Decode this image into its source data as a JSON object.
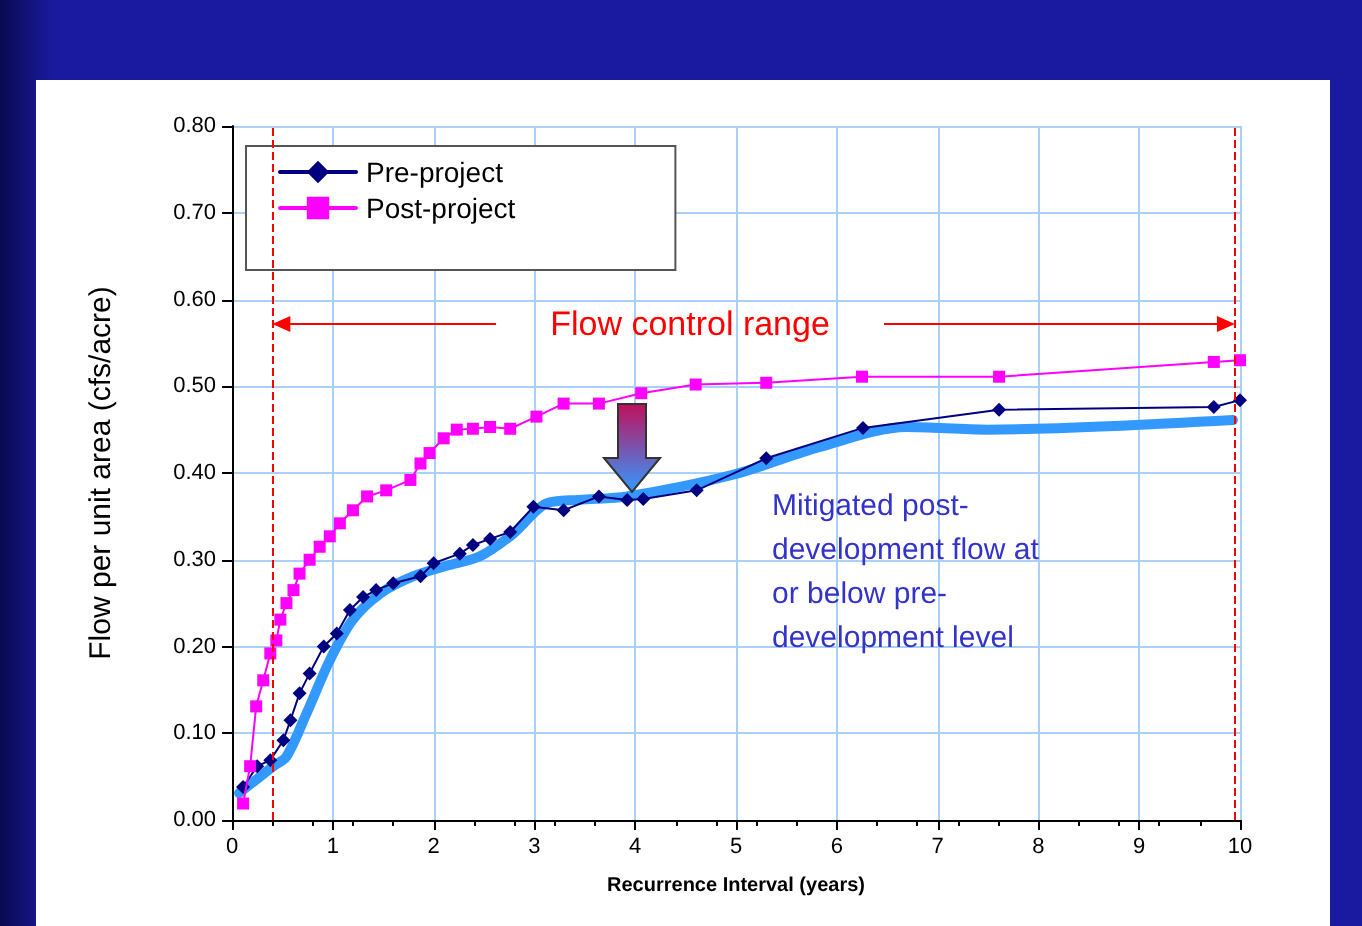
{
  "chart_data": {
    "type": "line",
    "xlabel": "Recurrence Interval (years)",
    "ylabel": "Flow per unit area (cfs/acre)",
    "xlim": [
      0,
      10
    ],
    "xticks": [
      0,
      1,
      2,
      3,
      4,
      5,
      6,
      7,
      8,
      9,
      10
    ],
    "ylim": [
      0,
      0.8
    ],
    "yticks": [
      {
        "value": 0,
        "label": "0.00"
      },
      {
        "value": 0.1,
        "label": "0.10"
      },
      {
        "value": 0.2,
        "label": "0.20"
      },
      {
        "value": 0.3,
        "label": "0.30"
      },
      {
        "value": 0.4,
        "label": "0.40"
      },
      {
        "value": 0.5,
        "label": "0.50"
      },
      {
        "value": 0.6,
        "label": "0.60"
      },
      {
        "value": 0.7,
        "label": "0.70"
      },
      {
        "value": 0.8,
        "label": "0.80"
      }
    ],
    "grid": true,
    "legend": "top left",
    "line_style": "solid",
    "series": [
      {
        "name": "Pre-project",
        "color": "#000080",
        "marker": "diamond",
        "x": [
          0.11,
          0.25,
          0.38,
          0.51,
          0.58,
          0.67,
          0.77,
          0.91,
          1.04,
          1.17,
          1.3,
          1.43,
          1.6,
          1.87,
          2.0,
          2.26,
          2.39,
          2.56,
          2.76,
          2.99,
          3.29,
          3.64,
          3.92,
          4.08,
          4.61,
          5.3,
          6.26,
          7.61,
          9.74,
          10
        ],
        "values": [
          0.038,
          0.062,
          0.069,
          0.092,
          0.115,
          0.146,
          0.169,
          0.2,
          0.215,
          0.242,
          0.257,
          0.265,
          0.273,
          0.281,
          0.296,
          0.307,
          0.317,
          0.324,
          0.332,
          0.361,
          0.357,
          0.373,
          0.369,
          0.37,
          0.38,
          0.417,
          0.452,
          0.473,
          0.476,
          0.484
        ]
      },
      {
        "name": "Post-project",
        "color": "#ff00ff",
        "marker": "square",
        "x": [
          0.11,
          0.18,
          0.24,
          0.31,
          0.38,
          0.44,
          0.48,
          0.54,
          0.61,
          0.67,
          0.77,
          0.87,
          0.97,
          1.07,
          1.2,
          1.34,
          1.53,
          1.77,
          1.87,
          1.96,
          2.1,
          2.23,
          2.39,
          2.56,
          2.76,
          3.02,
          3.29,
          3.64,
          4.06,
          4.6,
          5.3,
          6.25,
          7.61,
          9.74,
          10
        ],
        "values": [
          0.019,
          0.062,
          0.131,
          0.161,
          0.192,
          0.207,
          0.231,
          0.25,
          0.265,
          0.284,
          0.3,
          0.315,
          0.327,
          0.342,
          0.357,
          0.373,
          0.38,
          0.392,
          0.411,
          0.423,
          0.44,
          0.45,
          0.451,
          0.453,
          0.451,
          0.465,
          0.48,
          0.48,
          0.492,
          0.502,
          0.504,
          0.511,
          0.511,
          0.528,
          0.53
        ]
      },
      {
        "color": "#3399ff",
        "marker": "none",
        "x": [
          0.07,
          0.41,
          0.54,
          0.74,
          0.97,
          1.2,
          1.47,
          1.8,
          2.13,
          2.46,
          2.79,
          3.12,
          3.44,
          3.92,
          4.97,
          5.83,
          6.69,
          7.49,
          9.93
        ],
        "values": [
          0.031,
          0.062,
          0.073,
          0.123,
          0.184,
          0.231,
          0.261,
          0.281,
          0.293,
          0.304,
          0.33,
          0.365,
          0.369,
          0.373,
          0.398,
          0.43,
          0.453,
          0.45,
          0.461
        ]
      }
    ],
    "ref_lines": [
      {
        "axis": "x",
        "value": 0.4,
        "color": "#ff0000",
        "line_style": "dashed"
      },
      {
        "axis": "x",
        "value": 9.95,
        "color": "#ff0000",
        "line_style": "dashed"
      }
    ],
    "annotations": [
      "Flow control range",
      "Mitigated post-\ndevelopment flow at\nor below pre-\ndevelopment level"
    ]
  }
}
